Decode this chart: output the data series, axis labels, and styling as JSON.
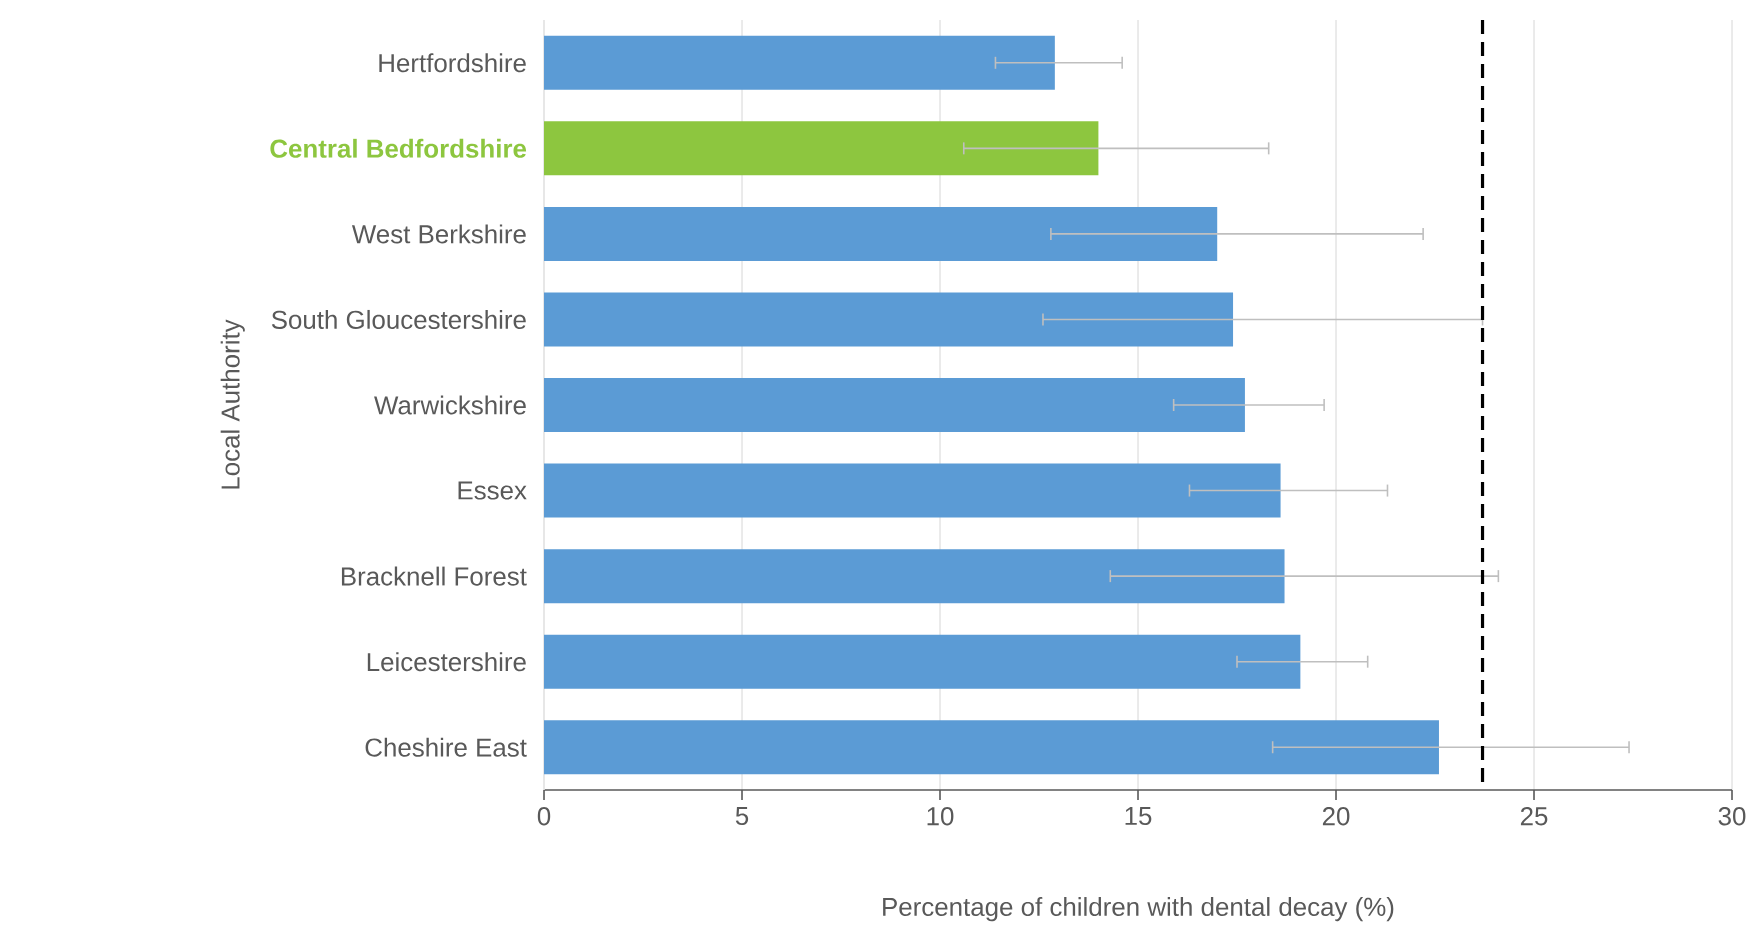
{
  "chart_data": {
    "type": "bar",
    "orientation": "horizontal",
    "xlabel": "Percentage of children with dental decay (%)",
    "ylabel": "Local Authority",
    "categories": [
      "Hertfordshire",
      "Central Bedfordshire",
      "West Berkshire",
      "South Gloucestershire",
      "Warwickshire",
      "Essex",
      "Bracknell Forest",
      "Leicestershire",
      "Cheshire East"
    ],
    "values": [
      12.9,
      14.0,
      17.0,
      17.4,
      17.7,
      18.6,
      18.7,
      19.1,
      22.6
    ],
    "errors": [
      [
        11.4,
        14.6
      ],
      [
        10.6,
        18.3
      ],
      [
        12.8,
        22.2
      ],
      [
        12.6,
        23.7
      ],
      [
        15.9,
        19.7
      ],
      [
        16.3,
        21.3
      ],
      [
        14.3,
        24.1
      ],
      [
        17.5,
        20.8
      ],
      [
        18.4,
        27.4
      ]
    ],
    "colors": [
      "#5b9bd5",
      "#8dc63f",
      "#5b9bd5",
      "#5b9bd5",
      "#5b9bd5",
      "#5b9bd5",
      "#5b9bd5",
      "#5b9bd5",
      "#5b9bd5"
    ],
    "xlim": [
      0,
      30
    ],
    "xticks": [
      0,
      5,
      10,
      15,
      20,
      25,
      30
    ],
    "grid": "x",
    "ref_lines": [
      {
        "axis": "x",
        "value": 23.7,
        "color": "#000000",
        "line_style": "dashed"
      }
    ]
  }
}
